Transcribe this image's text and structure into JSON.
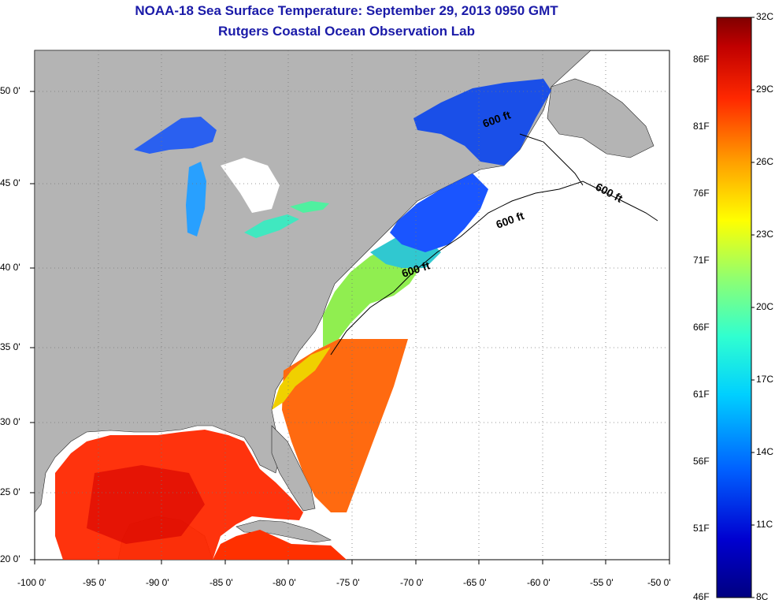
{
  "title_line1": "NOAA-18 Sea Surface Temperature:  September 29, 2013 0950 GMT",
  "title_line2": "Rutgers Coastal Ocean Observation Lab",
  "x_ticks": [
    "-100 0'",
    "-95 0'",
    "-90 0'",
    "-85 0'",
    "-80 0'",
    "-75 0'",
    "-70 0'",
    "-65 0'",
    "-60 0'",
    "-55 0'",
    "-50 0'"
  ],
  "y_ticks": [
    "50 0'",
    "45 0'",
    "40 0'",
    "35 0'",
    "30 0'",
    "25 0'",
    "20 0'"
  ],
  "contour_labels": [
    "600 ft",
    "600 ft",
    "600 ft",
    "600 ft"
  ],
  "colorbar": {
    "celsius": [
      "32C",
      "29C",
      "26C",
      "23C",
      "20C",
      "17C",
      "14C",
      "11C",
      "8C"
    ],
    "fahrenheit": [
      "86F",
      "81F",
      "76F",
      "71F",
      "66F",
      "61F",
      "56F",
      "51F",
      "46F"
    ],
    "colors": [
      "#000080",
      "#0000c8",
      "#0040ff",
      "#0090ff",
      "#00dfff",
      "#40ffbf",
      "#a0ff60",
      "#ffff00",
      "#ffbf00",
      "#ff7000",
      "#ff2000",
      "#cc0000",
      "#800000"
    ]
  },
  "colors": {
    "land": "#b4b4b4",
    "no_data": "#ffffff",
    "title": "#1a1aa8"
  }
}
